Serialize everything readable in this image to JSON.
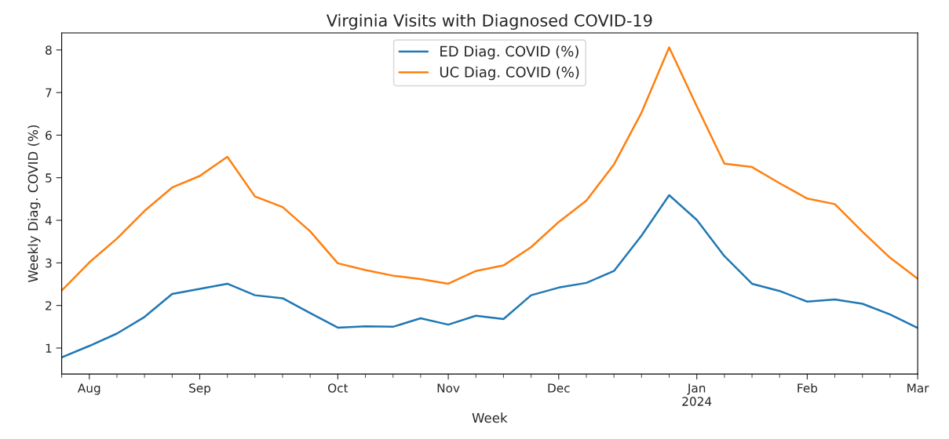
{
  "chart_data": {
    "type": "line",
    "title": "Virginia Visits with Diagnosed COVID-19",
    "xlabel": "Week",
    "ylabel": "Weekly Diag. COVID (%)",
    "x": [
      "2023-07-29",
      "2023-08-05",
      "2023-08-12",
      "2023-08-19",
      "2023-08-26",
      "2023-09-02",
      "2023-09-09",
      "2023-09-16",
      "2023-09-23",
      "2023-09-30",
      "2023-10-07",
      "2023-10-14",
      "2023-10-21",
      "2023-10-28",
      "2023-11-04",
      "2023-11-11",
      "2023-11-18",
      "2023-11-25",
      "2023-12-02",
      "2023-12-09",
      "2023-12-16",
      "2023-12-23",
      "2023-12-30",
      "2024-01-06",
      "2024-01-13",
      "2024-01-20",
      "2024-01-27",
      "2024-02-03",
      "2024-02-10",
      "2024-02-17",
      "2024-02-24",
      "2024-03-02"
    ],
    "series": [
      {
        "name": "ED Diag. COVID (%)",
        "color": "#1f77b4",
        "values": [
          0.78,
          1.05,
          1.34,
          1.73,
          2.27,
          2.39,
          2.51,
          2.24,
          2.17,
          1.82,
          1.48,
          1.51,
          1.5,
          1.7,
          1.55,
          1.76,
          1.68,
          2.24,
          2.42,
          2.53,
          2.81,
          3.64,
          4.59,
          4.01,
          3.16,
          2.51,
          2.34,
          2.09,
          2.14,
          2.04,
          1.79,
          1.47
        ]
      },
      {
        "name": "UC Diag. COVID (%)",
        "color": "#ff7f0e",
        "values": [
          2.35,
          3.01,
          3.57,
          4.22,
          4.77,
          5.04,
          5.49,
          4.56,
          4.31,
          3.74,
          2.99,
          2.83,
          2.7,
          2.62,
          2.51,
          2.81,
          2.94,
          3.37,
          3.96,
          4.46,
          5.31,
          6.53,
          8.06,
          6.68,
          5.33,
          5.25,
          4.87,
          4.51,
          4.38,
          3.73,
          3.12,
          2.63
        ]
      }
    ],
    "xlim": [
      "2023-07-29",
      "2024-03-02"
    ],
    "xticks": [
      {
        "value": "2023-07-29",
        "label": null
      },
      {
        "value": "2023-08-05",
        "label": "Aug"
      },
      {
        "value": "2023-08-12",
        "label": null
      },
      {
        "value": "2023-08-19",
        "label": null
      },
      {
        "value": "2023-08-26",
        "label": null
      },
      {
        "value": "2023-09-02",
        "label": "Sep"
      },
      {
        "value": "2023-09-09",
        "label": null
      },
      {
        "value": "2023-09-16",
        "label": null
      },
      {
        "value": "2023-09-23",
        "label": null
      },
      {
        "value": "2023-09-30",
        "label": null
      },
      {
        "value": "2023-10-07",
        "label": "Oct"
      },
      {
        "value": "2023-10-14",
        "label": null
      },
      {
        "value": "2023-10-21",
        "label": null
      },
      {
        "value": "2023-10-28",
        "label": null
      },
      {
        "value": "2023-11-04",
        "label": "Nov"
      },
      {
        "value": "2023-11-11",
        "label": null
      },
      {
        "value": "2023-11-18",
        "label": null
      },
      {
        "value": "2023-11-25",
        "label": null
      },
      {
        "value": "2023-12-02",
        "label": "Dec"
      },
      {
        "value": "2023-12-09",
        "label": null
      },
      {
        "value": "2023-12-16",
        "label": null
      },
      {
        "value": "2023-12-23",
        "label": null
      },
      {
        "value": "2023-12-30",
        "label": null
      },
      {
        "value": "2024-01-06",
        "label": "Jan\n2024"
      },
      {
        "value": "2024-01-13",
        "label": null
      },
      {
        "value": "2024-01-20",
        "label": null
      },
      {
        "value": "2024-01-27",
        "label": null
      },
      {
        "value": "2024-02-03",
        "label": "Feb"
      },
      {
        "value": "2024-02-10",
        "label": null
      },
      {
        "value": "2024-02-17",
        "label": null
      },
      {
        "value": "2024-02-24",
        "label": null
      },
      {
        "value": "2024-03-02",
        "label": "Mar"
      }
    ],
    "ylim": [
      0.39,
      8.4
    ],
    "yticks": [
      1,
      2,
      3,
      4,
      5,
      6,
      7,
      8
    ],
    "legend": "top",
    "grid": false,
    "marker": "none",
    "line_style": "solid"
  }
}
